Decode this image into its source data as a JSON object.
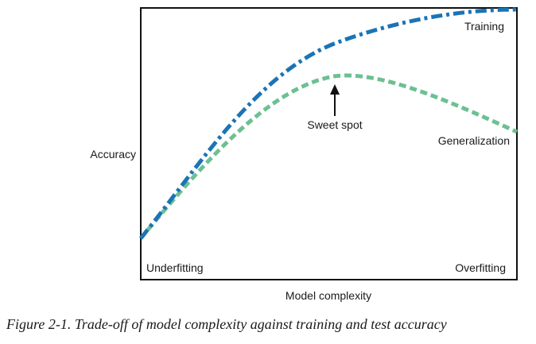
{
  "figure": {
    "y_axis_label": "Accuracy",
    "x_axis_label": "Model complexity",
    "corner_left": "Underfitting",
    "corner_right": "Overfitting",
    "annotation": "Sweet spot",
    "series": [
      {
        "name": "Training",
        "color": "#1a74b6",
        "style": "dash-dot"
      },
      {
        "name": "Generalization",
        "color": "#6cc092",
        "style": "dashed"
      }
    ]
  },
  "caption": "Figure 2-1. Trade-off of model complexity against training and test accuracy"
}
